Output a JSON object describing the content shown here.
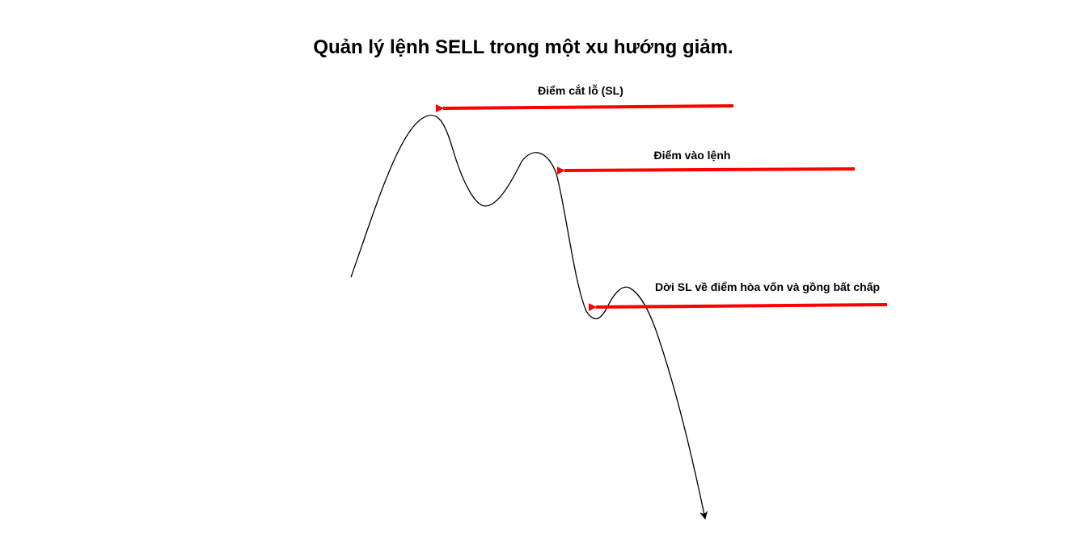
{
  "title": "Quản lý lệnh SELL trong một xu hướng giảm.",
  "annotations": [
    {
      "id": "stop-loss",
      "label": "Điểm cắt lỗ (SL)"
    },
    {
      "id": "entry",
      "label": "Điểm vào lệnh"
    },
    {
      "id": "breakeven",
      "label": "Dời SL về điểm hòa vốn và gồng bất chấp"
    }
  ],
  "colors": {
    "arrow": "#ff0000",
    "price_line": "#000000",
    "text": "#000000",
    "background": "#ffffff"
  }
}
